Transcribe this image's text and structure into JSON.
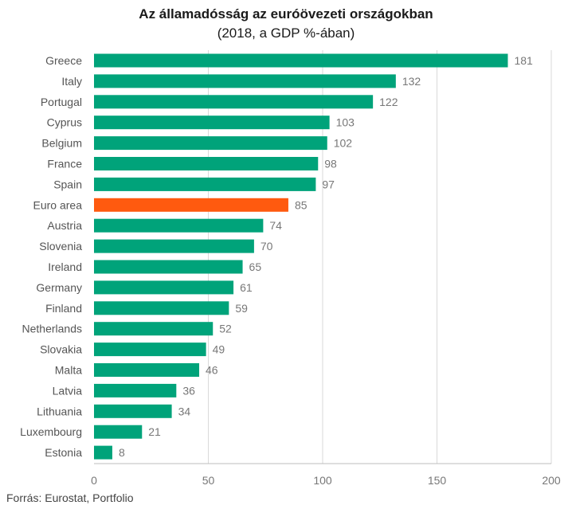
{
  "chart_data": {
    "type": "bar",
    "orientation": "horizontal",
    "title": "Az államadósság az euróövezeti országokban",
    "subtitle": "(2018, a GDP %-ában)",
    "categories": [
      "Greece",
      "Italy",
      "Portugal",
      "Cyprus",
      "Belgium",
      "France",
      "Spain",
      "Euro area",
      "Austria",
      "Slovenia",
      "Ireland",
      "Germany",
      "Finland",
      "Netherlands",
      "Slovakia",
      "Malta",
      "Latvia",
      "Lithuania",
      "Luxembourg",
      "Estonia"
    ],
    "values": [
      181,
      132,
      122,
      103,
      102,
      98,
      97,
      85,
      74,
      70,
      65,
      61,
      59,
      52,
      49,
      46,
      36,
      34,
      21,
      8
    ],
    "highlight": "Euro area",
    "xlim": [
      0,
      200
    ],
    "xticks": [
      0,
      50,
      100,
      150,
      200
    ],
    "grid": true,
    "colors": {
      "bar": "#00a37a",
      "highlight": "#ff5a0f",
      "grid": "#d9d9d9"
    }
  },
  "source": "Forrás: Eurostat, Portfolio"
}
